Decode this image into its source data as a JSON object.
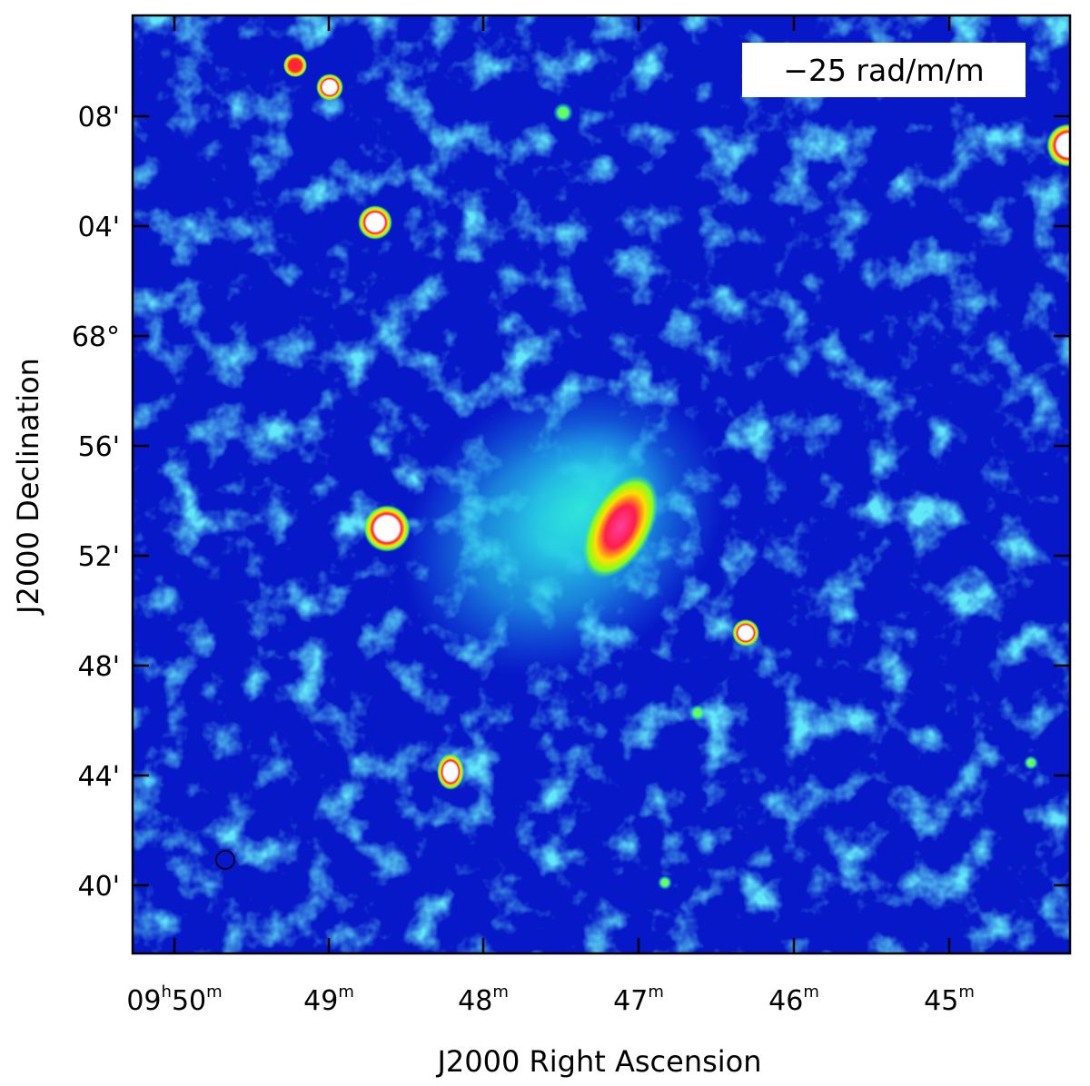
{
  "image": {
    "description_free": true,
    "label_box": "−25 rad/m/m",
    "colormap": [
      "#0000c8",
      "#0a3cf0",
      "#1e8cf0",
      "#2fd6e8",
      "#00ffb0",
      "#7cff00",
      "#ffff00",
      "#ff3030",
      "#ff2090",
      "#ffffff"
    ]
  },
  "axes": {
    "xlabel": "J2000 Right Ascension",
    "ylabel": "J2000 Declination",
    "x_ticks": [
      {
        "hours": "09",
        "h_unit": "h",
        "minutes": "50",
        "m_unit": "m"
      },
      {
        "hours": "",
        "h_unit": "",
        "minutes": "49",
        "m_unit": "m"
      },
      {
        "hours": "",
        "h_unit": "",
        "minutes": "48",
        "m_unit": "m"
      },
      {
        "hours": "",
        "h_unit": "",
        "minutes": "47",
        "m_unit": "m"
      },
      {
        "hours": "",
        "h_unit": "",
        "minutes": "46",
        "m_unit": "m"
      },
      {
        "hours": "",
        "h_unit": "",
        "minutes": "45",
        "m_unit": "m"
      }
    ],
    "y_ticks": [
      "08'",
      "04'",
      "68°",
      "56'",
      "52'",
      "48'",
      "44'",
      "40'"
    ]
  }
}
